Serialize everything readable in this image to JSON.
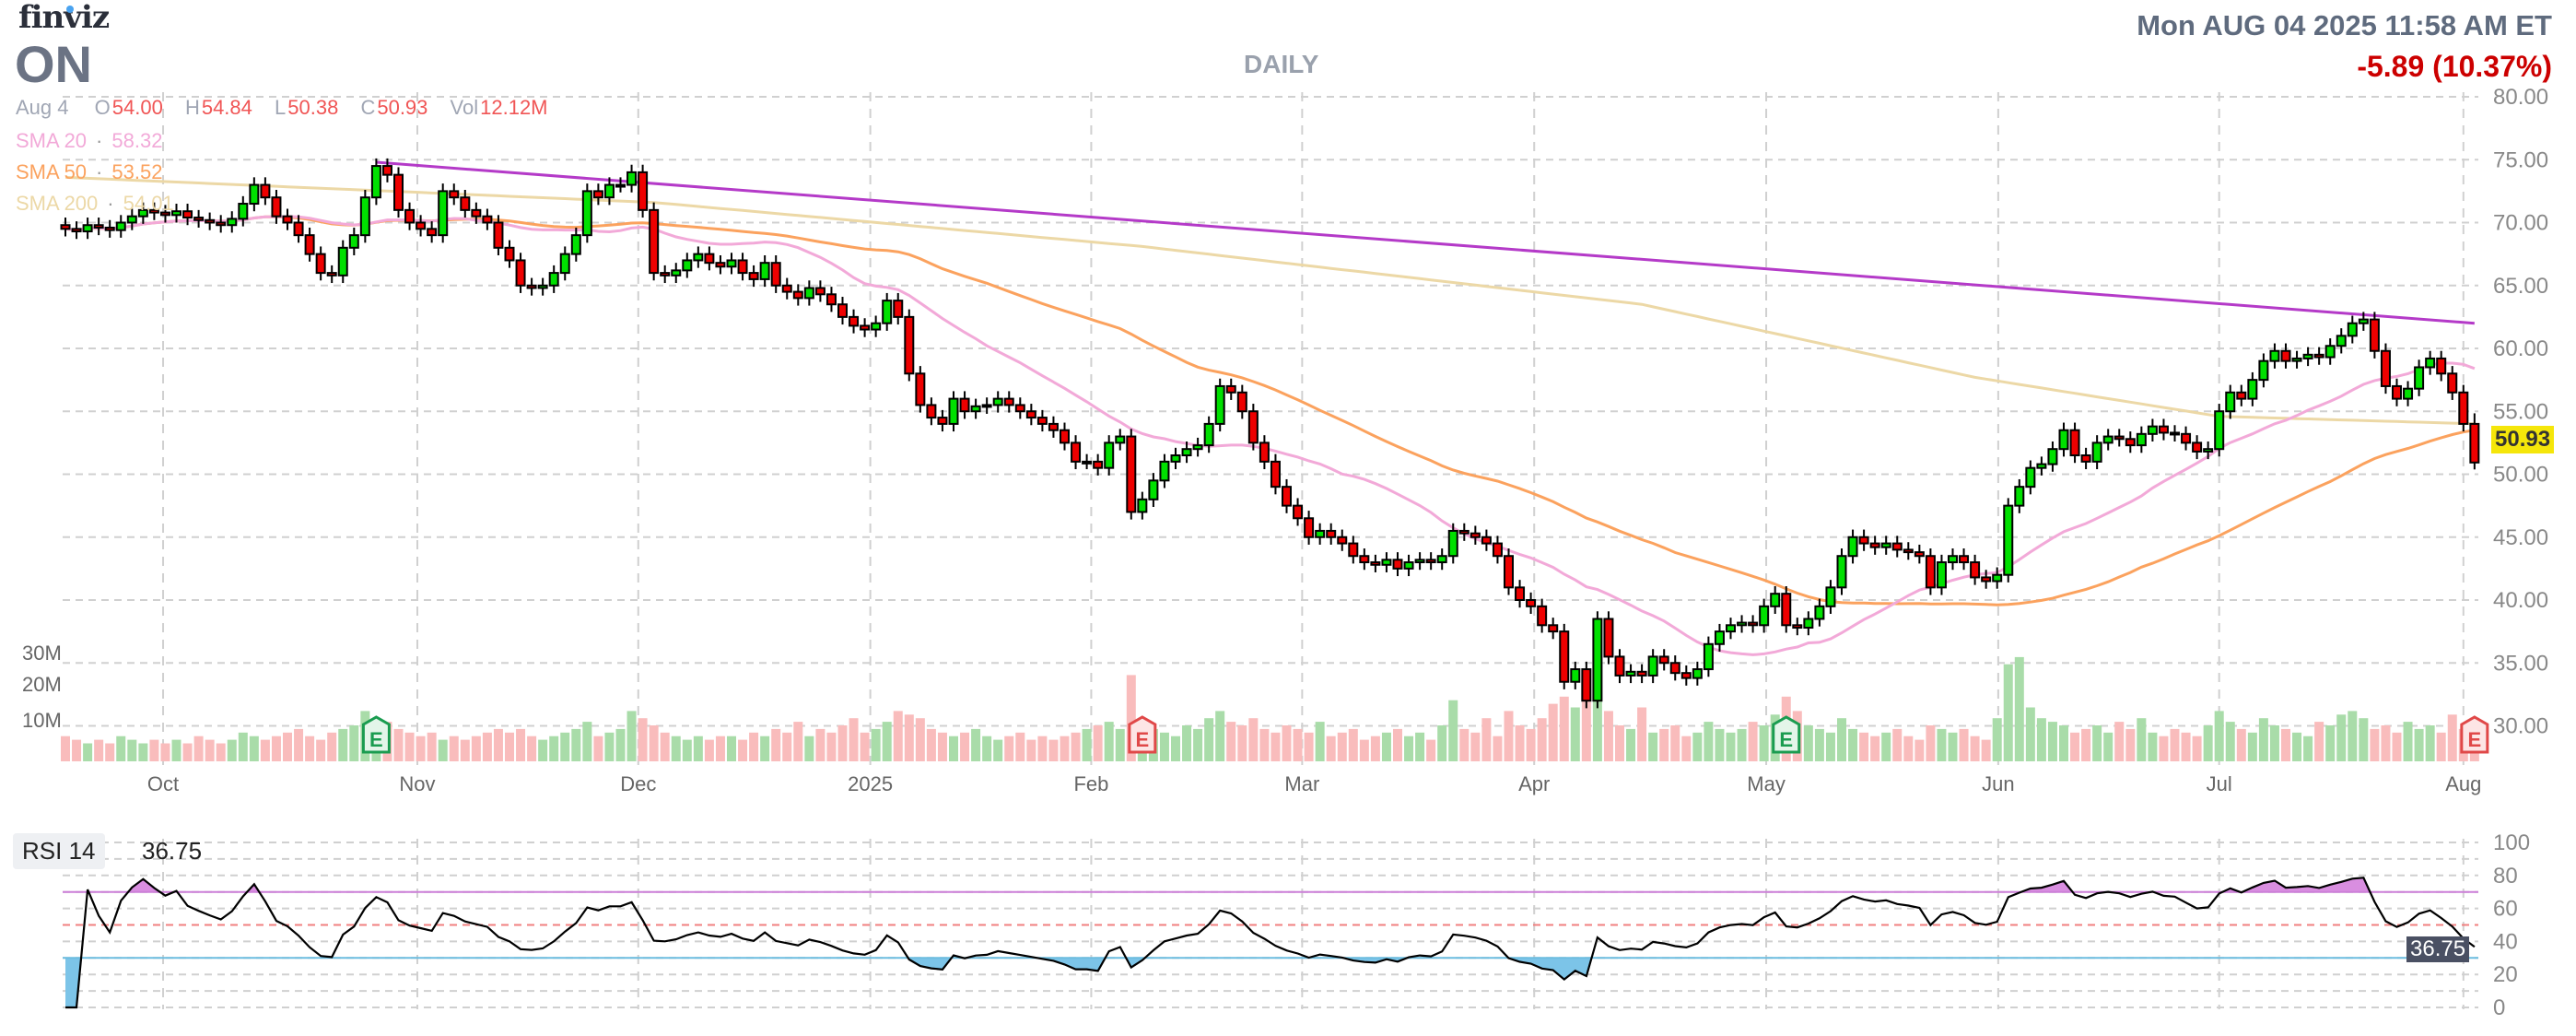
{
  "header": {
    "logo": "finviz",
    "ticker": "ON",
    "period": "DAILY",
    "datetime": "Mon AUG 04 2025 11:58 AM ET",
    "change": "-5.89 (10.37%)"
  },
  "ohlc": {
    "date": "Aug 4",
    "o_label": "O",
    "o": "54.00",
    "h_label": "H",
    "h": "54.84",
    "l_label": "L",
    "l": "50.38",
    "c_label": "C",
    "c": "50.93",
    "vol_label": "Vol",
    "vol": "12.12M"
  },
  "legend": {
    "sma20": {
      "label": "SMA 20",
      "value": "58.32",
      "color": "#f2a9d8"
    },
    "sma50": {
      "label": "SMA 50",
      "value": "53.52",
      "color": "#fba25e"
    },
    "sma200": {
      "label": "SMA 200",
      "value": "54.01",
      "color": "#ecd8a6"
    },
    "sep": "·"
  },
  "volume_axis": [
    "30M",
    "20M",
    "10M"
  ],
  "price_tag": "50.93",
  "rsi": {
    "label": "RSI 14",
    "value": "36.75",
    "ticks": [
      "100",
      "80",
      "60",
      "40",
      "20",
      "0"
    ],
    "overbought": 70,
    "mid": 50,
    "oversold": 30
  },
  "colors": {
    "up": "#00e000",
    "down": "#ee0000",
    "vol_up": "#a9dca9",
    "vol_down": "#f9bcbc",
    "trendline": "#b43ac8",
    "grid": "#d0d0d0"
  },
  "chart_data": {
    "type": "candlestick",
    "title": "ON DAILY",
    "price_ticks": [
      "80.00",
      "75.00",
      "70.00",
      "65.00",
      "60.00",
      "55.00",
      "50.00",
      "45.00",
      "40.00",
      "35.00",
      "30.00"
    ],
    "ylim": [
      30,
      80
    ],
    "months": [
      {
        "label": "Oct",
        "index": 8.8
      },
      {
        "label": "Nov",
        "index": 31.7
      },
      {
        "label": "Dec",
        "index": 51.6
      },
      {
        "label": "2025",
        "index": 72.5
      },
      {
        "label": "Feb",
        "index": 92.4
      },
      {
        "label": "Mar",
        "index": 111.4
      },
      {
        "label": "Apr",
        "index": 132.3
      },
      {
        "label": "May",
        "index": 153.2
      },
      {
        "label": "Jun",
        "index": 174.1
      },
      {
        "label": "Jul",
        "index": 194
      },
      {
        "label": "Aug",
        "index": 216
      }
    ],
    "closes": [
      69.5,
      69.3,
      69.8,
      69.6,
      69.4,
      70,
      70.5,
      71,
      70.8,
      70.6,
      70.9,
      70.4,
      70.2,
      70,
      69.8,
      70.3,
      71.5,
      73,
      72,
      70.5,
      70,
      69,
      67.5,
      66,
      65.8,
      68,
      69,
      72,
      74.5,
      73.8,
      71,
      70,
      69.5,
      69,
      72.5,
      72,
      71,
      70.5,
      70,
      68,
      67,
      65,
      64.8,
      65,
      66,
      67.5,
      69,
      72.5,
      72,
      73,
      73,
      74,
      71,
      66,
      65.8,
      66.2,
      67,
      67.5,
      66.8,
      66.5,
      67,
      66,
      65.5,
      66.8,
      65,
      64.5,
      64,
      64.8,
      64.3,
      63.5,
      62.5,
      61.8,
      61.5,
      62,
      63.8,
      62.5,
      58,
      55.5,
      54.5,
      54,
      56,
      55,
      55.4,
      55.5,
      56,
      55.5,
      55,
      54.5,
      54,
      53.5,
      52.5,
      51,
      51,
      50.5,
      52.5,
      53,
      47,
      48,
      49.5,
      51,
      51.5,
      52,
      52.3,
      54,
      57,
      56.5,
      55,
      52.5,
      51,
      49,
      47.5,
      46.5,
      45,
      45.5,
      45,
      44.5,
      43.5,
      43,
      42.8,
      43.2,
      42.5,
      43,
      43.2,
      43,
      43.5,
      45.5,
      45.3,
      45,
      44.5,
      43.5,
      41,
      40,
      39.5,
      38,
      37.5,
      33.5,
      34.5,
      32,
      38.5,
      35.5,
      34,
      34.3,
      34,
      35.5,
      35,
      34.2,
      33.8,
      34.5,
      36.5,
      37.5,
      38,
      38.2,
      38,
      39.5,
      40.5,
      38,
      37.8,
      38.5,
      39.5,
      41,
      43.5,
      45,
      44.5,
      44.2,
      44.5,
      44,
      43.8,
      43.5,
      41,
      43,
      43.5,
      43,
      41.8,
      41.5,
      42,
      47.5,
      49,
      50.5,
      50.8,
      52,
      53.5,
      51.5,
      51,
      52.5,
      53,
      52.8,
      52.3,
      53.2,
      53.8,
      53.3,
      53.2,
      52.5,
      51.8,
      52,
      55,
      56.5,
      56,
      57.5,
      59,
      59.8,
      59,
      59.2,
      59.5,
      59.3,
      60.2,
      61,
      62,
      62.3,
      59.8,
      57,
      56,
      56.8,
      58.5,
      59.2,
      58,
      56.5,
      54,
      50.93
    ],
    "volumes_m": [
      7,
      6,
      5,
      6,
      5,
      7,
      6,
      5,
      6,
      5,
      6,
      5,
      7,
      6,
      5,
      6,
      8,
      7,
      6,
      7,
      8,
      9,
      7,
      6,
      8,
      9,
      10,
      14,
      12,
      11,
      9,
      8,
      7,
      8,
      6,
      7,
      6,
      7,
      8,
      9,
      8,
      9,
      7,
      6,
      7,
      8,
      9,
      11,
      7,
      8,
      9,
      14,
      12,
      10,
      8,
      7,
      6,
      7,
      6,
      7,
      7,
      6,
      8,
      7,
      9,
      8,
      11,
      7,
      9,
      8,
      10,
      12,
      8,
      9,
      11,
      14,
      13,
      12,
      9,
      8,
      7,
      8,
      9,
      7,
      6,
      7,
      8,
      6,
      7,
      6,
      7,
      8,
      9,
      10,
      11,
      9,
      24,
      11,
      9,
      8,
      7,
      10,
      9,
      12,
      14,
      11,
      10,
      12,
      9,
      8,
      10,
      9,
      8,
      11,
      7,
      8,
      9,
      6,
      7,
      8,
      9,
      7,
      8,
      6,
      10,
      17,
      9,
      8,
      12,
      7,
      14,
      10,
      9,
      12,
      16,
      18,
      15,
      20,
      22,
      14,
      10,
      9,
      15,
      8,
      9,
      10,
      7,
      8,
      11,
      9,
      8,
      9,
      11,
      10,
      13,
      18,
      14,
      10,
      9,
      8,
      12,
      9,
      8,
      7,
      8,
      9,
      7,
      6,
      10,
      9,
      8,
      9,
      7,
      6,
      12,
      27,
      29,
      15,
      12,
      11,
      10,
      8,
      9,
      10,
      8,
      11,
      9,
      12,
      8,
      7,
      9,
      8,
      7,
      10,
      14,
      11,
      9,
      8,
      12,
      10,
      9,
      8,
      7,
      11,
      10,
      13,
      14,
      12,
      9,
      10,
      8,
      11,
      9,
      10,
      8,
      13,
      9,
      12.12
    ],
    "last_candle": {
      "open": 54.0,
      "high": 54.84,
      "low": 50.38,
      "close": 50.93
    },
    "sma200_anchors": [
      [
        0,
        73.6
      ],
      [
        53,
        71.6
      ],
      [
        97,
        68.1
      ],
      [
        142,
        63.5
      ],
      [
        172,
        57.7
      ],
      [
        194,
        54.6
      ],
      [
        217,
        54.01
      ]
    ],
    "trendline": [
      [
        28,
        74.8
      ],
      [
        217,
        62.0
      ]
    ],
    "earnings": [
      {
        "index": 28,
        "label": "E",
        "result": "beat"
      },
      {
        "index": 97,
        "label": "E",
        "result": "miss"
      },
      {
        "index": 155,
        "label": "E",
        "result": "beat"
      },
      {
        "index": 217,
        "label": "E",
        "result": "miss"
      }
    ]
  }
}
